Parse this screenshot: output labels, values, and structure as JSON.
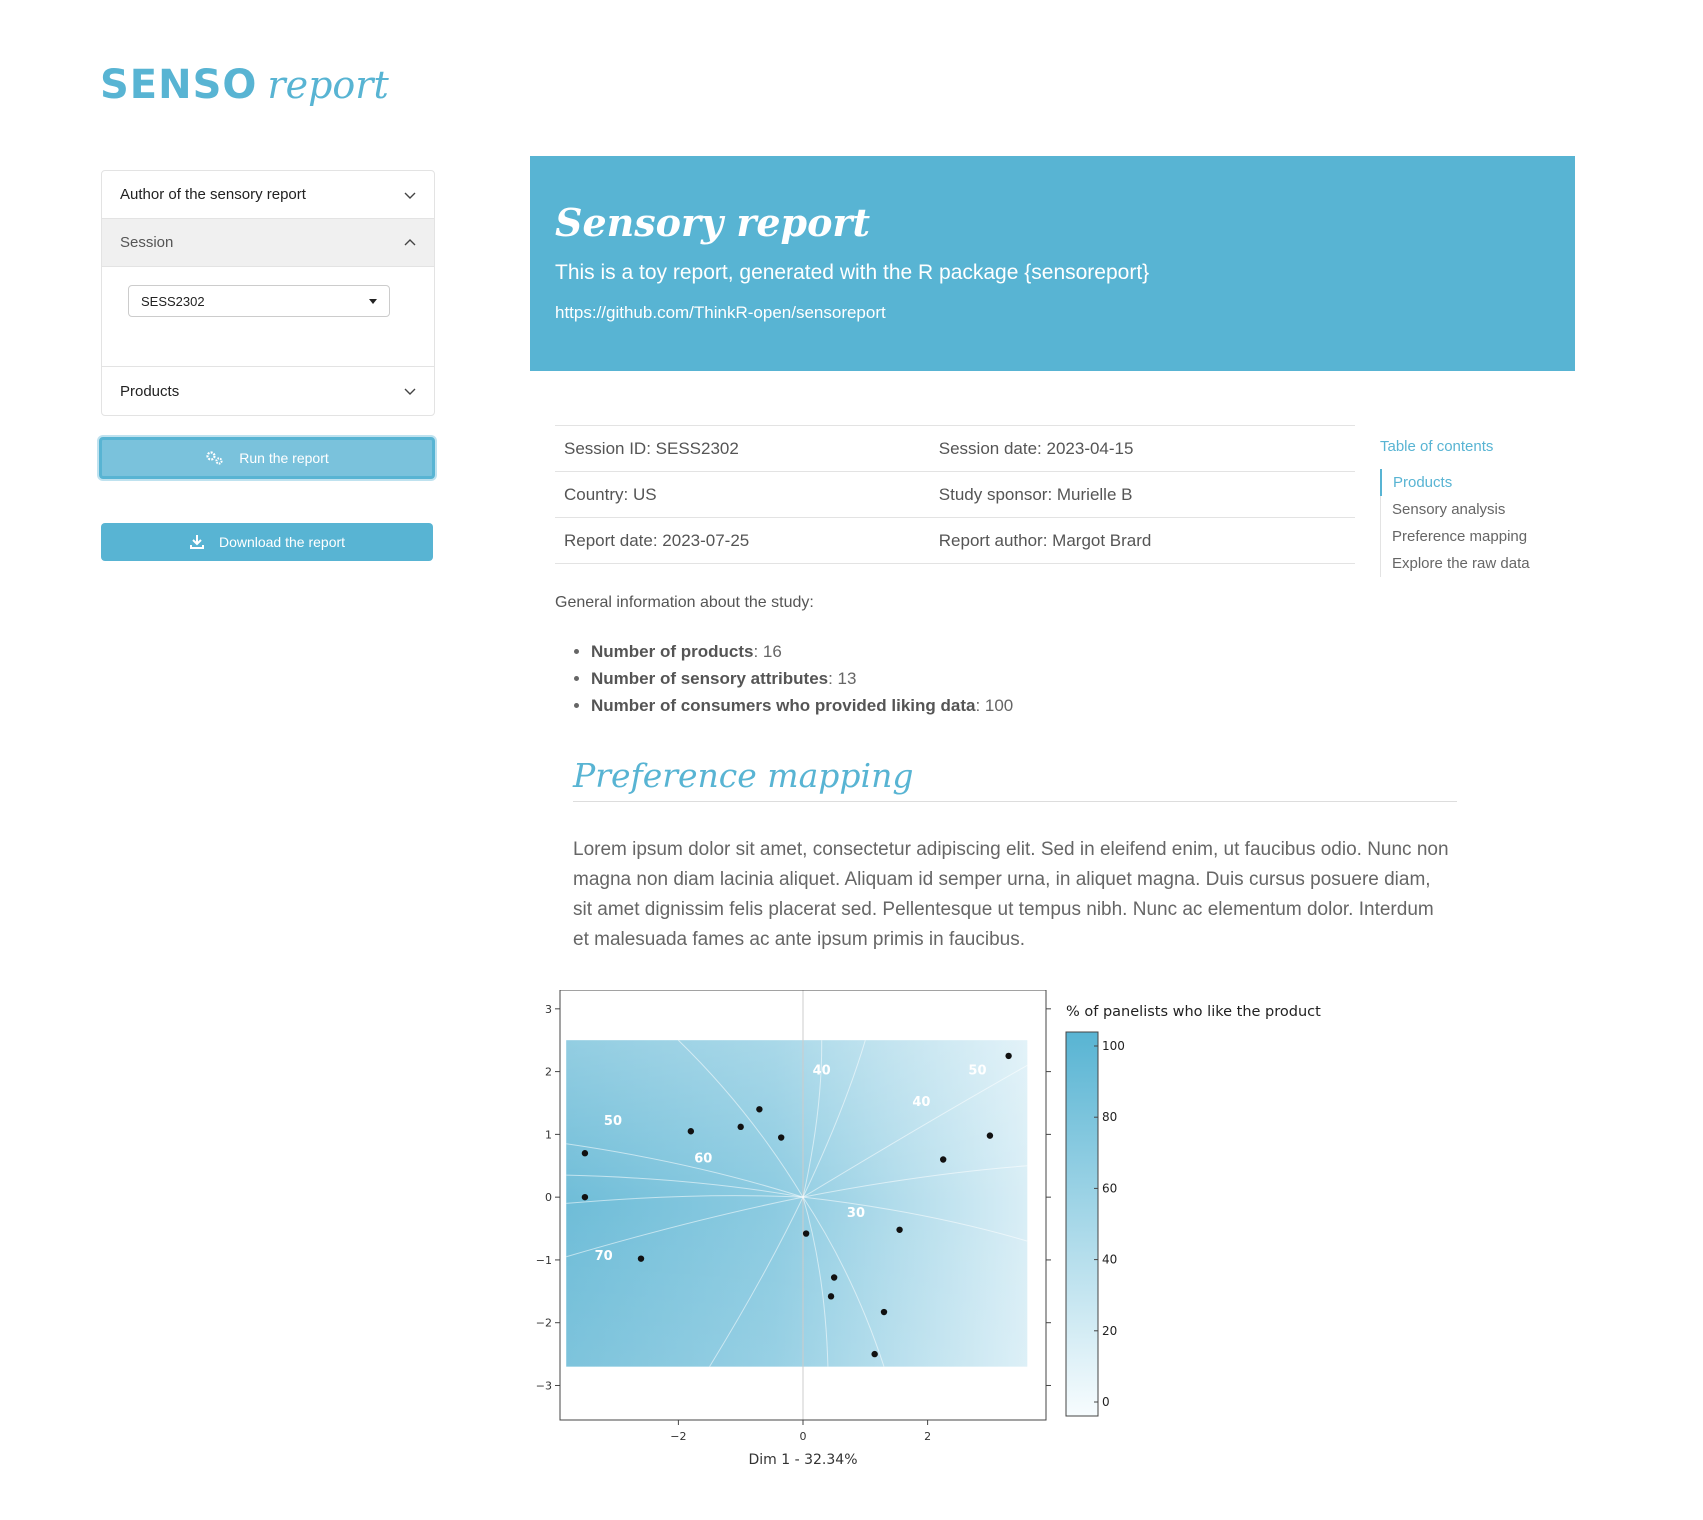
{
  "brand": {
    "logo_main": "SENSO",
    "logo_sub": "report",
    "accent_color": "#58b4d3"
  },
  "sidebar": {
    "accordion": [
      {
        "label": "Author of the sensory report",
        "open": false
      },
      {
        "label": "Session",
        "open": true,
        "select_value": "SESS2302"
      },
      {
        "label": "Products",
        "open": false
      }
    ],
    "run_label": "Run the report",
    "download_label": "Download the report"
  },
  "hero": {
    "title": "Sensory report",
    "subtitle": "This is a toy report, generated with the R package {sensoreport}",
    "link": "https://github.com/ThinkR-open/sensoreport"
  },
  "info": [
    [
      "Session ID: SESS2302",
      "Session date: 2023-04-15"
    ],
    [
      "Country: US",
      "Study sponsor: Murielle B"
    ],
    [
      "Report date: 2023-07-25",
      "Report author: Margot Brard"
    ]
  ],
  "toc": {
    "title": "Table of contents",
    "items": [
      "Products",
      "Sensory analysis",
      "Preference mapping",
      "Explore the raw data"
    ]
  },
  "general": {
    "intro": "General information about the study:",
    "facts": [
      {
        "label": "Number of products",
        "value": ": 16"
      },
      {
        "label": "Number of sensory attributes",
        "value": ": 13"
      },
      {
        "label": "Number of consumers who provided liking data",
        "value": ": 100"
      }
    ]
  },
  "preference": {
    "title": "Preference mapping",
    "text": "Lorem ipsum dolor sit amet, consectetur adipiscing elit. Sed in eleifend enim, ut faucibus odio. Nunc non magna non diam lacinia aliquet. Aliquam id semper urna, in aliquet magna. Duis cursus posuere diam, sit amet dignissim felis placerat sed. Pellentesque ut tempus nibh. Nunc ac elementum dolor. Interdum et malesuada fames ac ante ipsum primis in faucibus."
  },
  "chart_data": {
    "type": "scatter",
    "xlabel": "Dim 1 - 32.34%",
    "ylabel": "",
    "xlim": [
      -3.9,
      3.9
    ],
    "ylim": [
      -3.55,
      3.3
    ],
    "xticks": [
      -2,
      0,
      2
    ],
    "yticks": [
      -3,
      -2,
      -1,
      0,
      1,
      2,
      3
    ],
    "points": [
      {
        "x": -3.5,
        "y": 0.7
      },
      {
        "x": -3.5,
        "y": 0.0
      },
      {
        "x": -2.6,
        "y": -0.98
      },
      {
        "x": -1.8,
        "y": 1.05
      },
      {
        "x": -1.0,
        "y": 1.12
      },
      {
        "x": -0.7,
        "y": 1.4
      },
      {
        "x": -0.35,
        "y": 0.95
      },
      {
        "x": 0.05,
        "y": -0.58
      },
      {
        "x": 0.5,
        "y": -1.28
      },
      {
        "x": 0.45,
        "y": -1.58
      },
      {
        "x": 1.55,
        "y": -0.52
      },
      {
        "x": 1.3,
        "y": -1.83
      },
      {
        "x": 1.15,
        "y": -2.5
      },
      {
        "x": 2.25,
        "y": 0.6
      },
      {
        "x": 3.0,
        "y": 0.98
      },
      {
        "x": 3.3,
        "y": 2.25
      }
    ],
    "contour_labels": [
      {
        "text": "50",
        "x": -3.05,
        "y": 1.15
      },
      {
        "text": "60",
        "x": -1.6,
        "y": 0.55
      },
      {
        "text": "70",
        "x": -3.2,
        "y": -1.0
      },
      {
        "text": "40",
        "x": 0.3,
        "y": 1.95
      },
      {
        "text": "40",
        "x": 1.9,
        "y": 1.45
      },
      {
        "text": "50",
        "x": 2.8,
        "y": 1.95
      },
      {
        "text": "30",
        "x": 0.85,
        "y": -0.32
      }
    ],
    "colorbar": {
      "title": "% of panelists who like the product",
      "ticks": [
        0,
        20,
        40,
        60,
        80,
        100
      ],
      "colors": [
        "#f7fcfe",
        "#58b4d3"
      ]
    }
  }
}
